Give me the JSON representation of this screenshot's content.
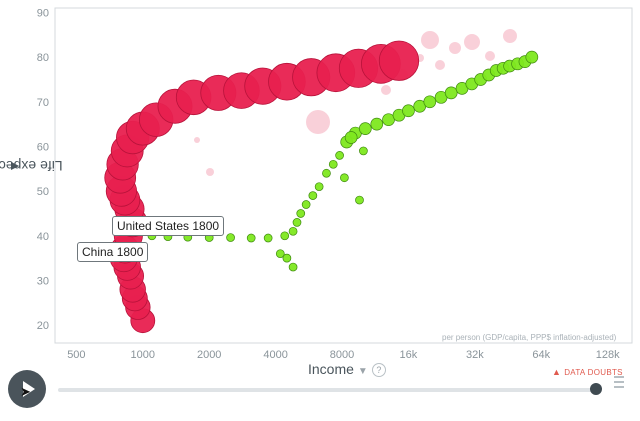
{
  "chart_data": {
    "type": "scatter",
    "xlabel": "Income",
    "ylabel": "Life expectancy",
    "x_scale": "log",
    "xlim": [
      400,
      165000
    ],
    "ylim": [
      16,
      91
    ],
    "x_ticks": [
      500,
      1000,
      2000,
      4000,
      8000,
      16000,
      32000,
      64000,
      128000
    ],
    "x_tick_labels": [
      "500",
      "1000",
      "2000",
      "4000",
      "8000",
      "16k",
      "32k",
      "64k",
      "128k"
    ],
    "y_ticks": [
      20,
      30,
      40,
      50,
      60,
      70,
      80,
      90
    ],
    "y_tick_labels": [
      "20",
      "30",
      "40",
      "50",
      "60",
      "70",
      "80",
      "90"
    ],
    "grid": false,
    "series": [
      {
        "name": "China",
        "color": "#e8204f",
        "size": "large",
        "points": [
          [
            1000,
            21
          ],
          [
            950,
            24
          ],
          [
            920,
            26
          ],
          [
            900,
            28
          ],
          [
            880,
            31
          ],
          [
            850,
            33
          ],
          [
            820,
            35
          ],
          [
            830,
            37
          ],
          [
            860,
            40
          ],
          [
            900,
            43
          ],
          [
            870,
            46
          ],
          [
            830,
            48
          ],
          [
            800,
            50
          ],
          [
            790,
            53
          ],
          [
            810,
            56
          ],
          [
            850,
            59
          ],
          [
            900,
            62
          ],
          [
            1000,
            64
          ],
          [
            1150,
            66
          ],
          [
            1400,
            69
          ],
          [
            1700,
            71
          ],
          [
            2200,
            72
          ],
          [
            2800,
            72.5
          ],
          [
            3500,
            73.5
          ],
          [
            4500,
            74.5
          ],
          [
            5800,
            75.5
          ],
          [
            7500,
            76.5
          ],
          [
            9500,
            77.5
          ],
          [
            12000,
            78.5
          ],
          [
            14500,
            79.2
          ]
        ]
      },
      {
        "name": "United States",
        "color": "#7ee81f",
        "size": "small",
        "points": [
          [
            1100,
            40
          ],
          [
            1300,
            39.8
          ],
          [
            1600,
            39.7
          ],
          [
            2000,
            39.6
          ],
          [
            2500,
            39.6
          ],
          [
            3100,
            39.5
          ],
          [
            3700,
            39.5
          ],
          [
            4400,
            40
          ],
          [
            4800,
            41
          ],
          [
            5000,
            43
          ],
          [
            5200,
            45
          ],
          [
            5500,
            47
          ],
          [
            5900,
            49
          ],
          [
            6300,
            51
          ],
          [
            6800,
            54
          ],
          [
            7300,
            56
          ],
          [
            7800,
            58
          ],
          [
            8400,
            61
          ],
          [
            9200,
            63
          ],
          [
            10200,
            64
          ],
          [
            11500,
            65
          ],
          [
            13000,
            66
          ],
          [
            14500,
            67
          ],
          [
            16000,
            68
          ],
          [
            18000,
            69
          ],
          [
            20000,
            70
          ],
          [
            22500,
            71
          ],
          [
            25000,
            72
          ],
          [
            28000,
            73
          ],
          [
            31000,
            74
          ],
          [
            34000,
            75
          ],
          [
            37000,
            76
          ],
          [
            40000,
            77
          ],
          [
            43000,
            77.5
          ],
          [
            46000,
            78
          ],
          [
            50000,
            78.5
          ],
          [
            54000,
            79
          ],
          [
            58000,
            80
          ],
          [
            4200,
            36
          ],
          [
            4500,
            35
          ],
          [
            4800,
            33
          ],
          [
            8200,
            53
          ],
          [
            10000,
            59
          ],
          [
            9600,
            48
          ],
          [
            8800,
            62
          ]
        ]
      }
    ],
    "labels": [
      "United States 1800",
      "China 1800"
    ],
    "watermark": "per person (GDP/capita, PPP$ inflation-adjusted)",
    "data_doubts": "DATA DOUBTS"
  },
  "background_bubble_color": "#f4a9b9"
}
